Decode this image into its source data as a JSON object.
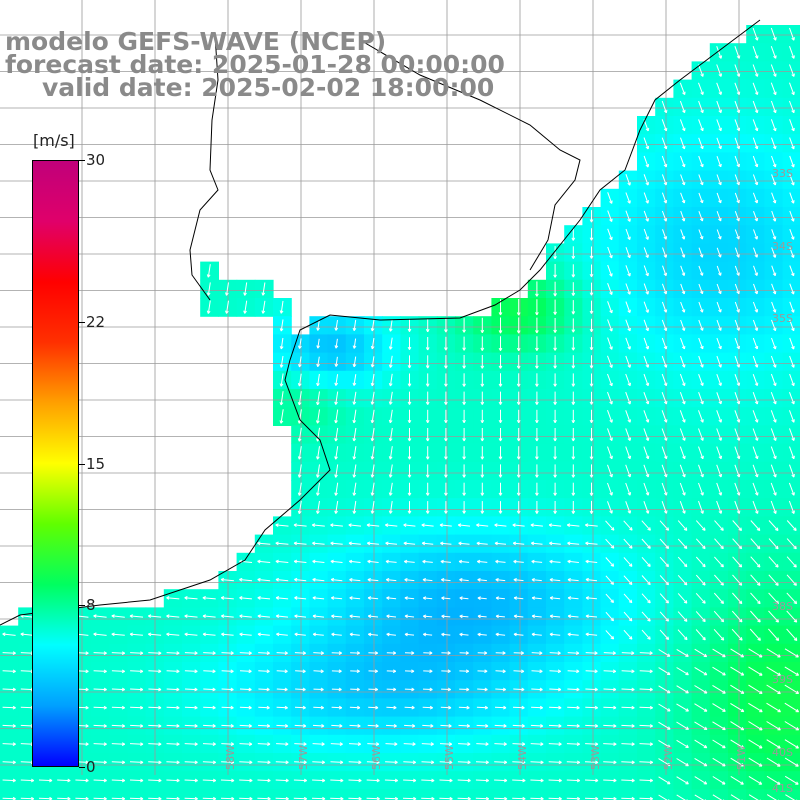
{
  "title": {
    "line1": "modelo GEFS-WAVE (NCEP)",
    "line2": "forecast date: 2025-01-28 00:00:00",
    "line3": "valid date: 2025-02-02 18:00:00"
  },
  "colorbar": {
    "unit": "[m/s]",
    "min": 0,
    "max": 30,
    "tick_labels": [
      "30",
      "22",
      "15",
      "8",
      "0"
    ],
    "tick_values": [
      30,
      22,
      15,
      8,
      0
    ],
    "colors": [
      "#0000ff",
      "#00a0ff",
      "#00ffff",
      "#00ff60",
      "#60ff00",
      "#ffff00",
      "#ffa000",
      "#ff3000",
      "#ff0000",
      "#e0006a",
      "#c0007a"
    ]
  },
  "map": {
    "longitude_labels": [
      "58W",
      "57W",
      "56W",
      "55W",
      "54W",
      "53W",
      "52W",
      "51W"
    ],
    "latitude_labels": [
      "33S",
      "34S",
      "35S",
      "38S",
      "39S",
      "40S",
      "41S"
    ],
    "land_color": "#ffffff",
    "grid_color": "#9a9a9a",
    "wind_field_note_colors": [
      "#0020ff",
      "#00c8ff",
      "#30ffd0",
      "#40ff80"
    ]
  }
}
